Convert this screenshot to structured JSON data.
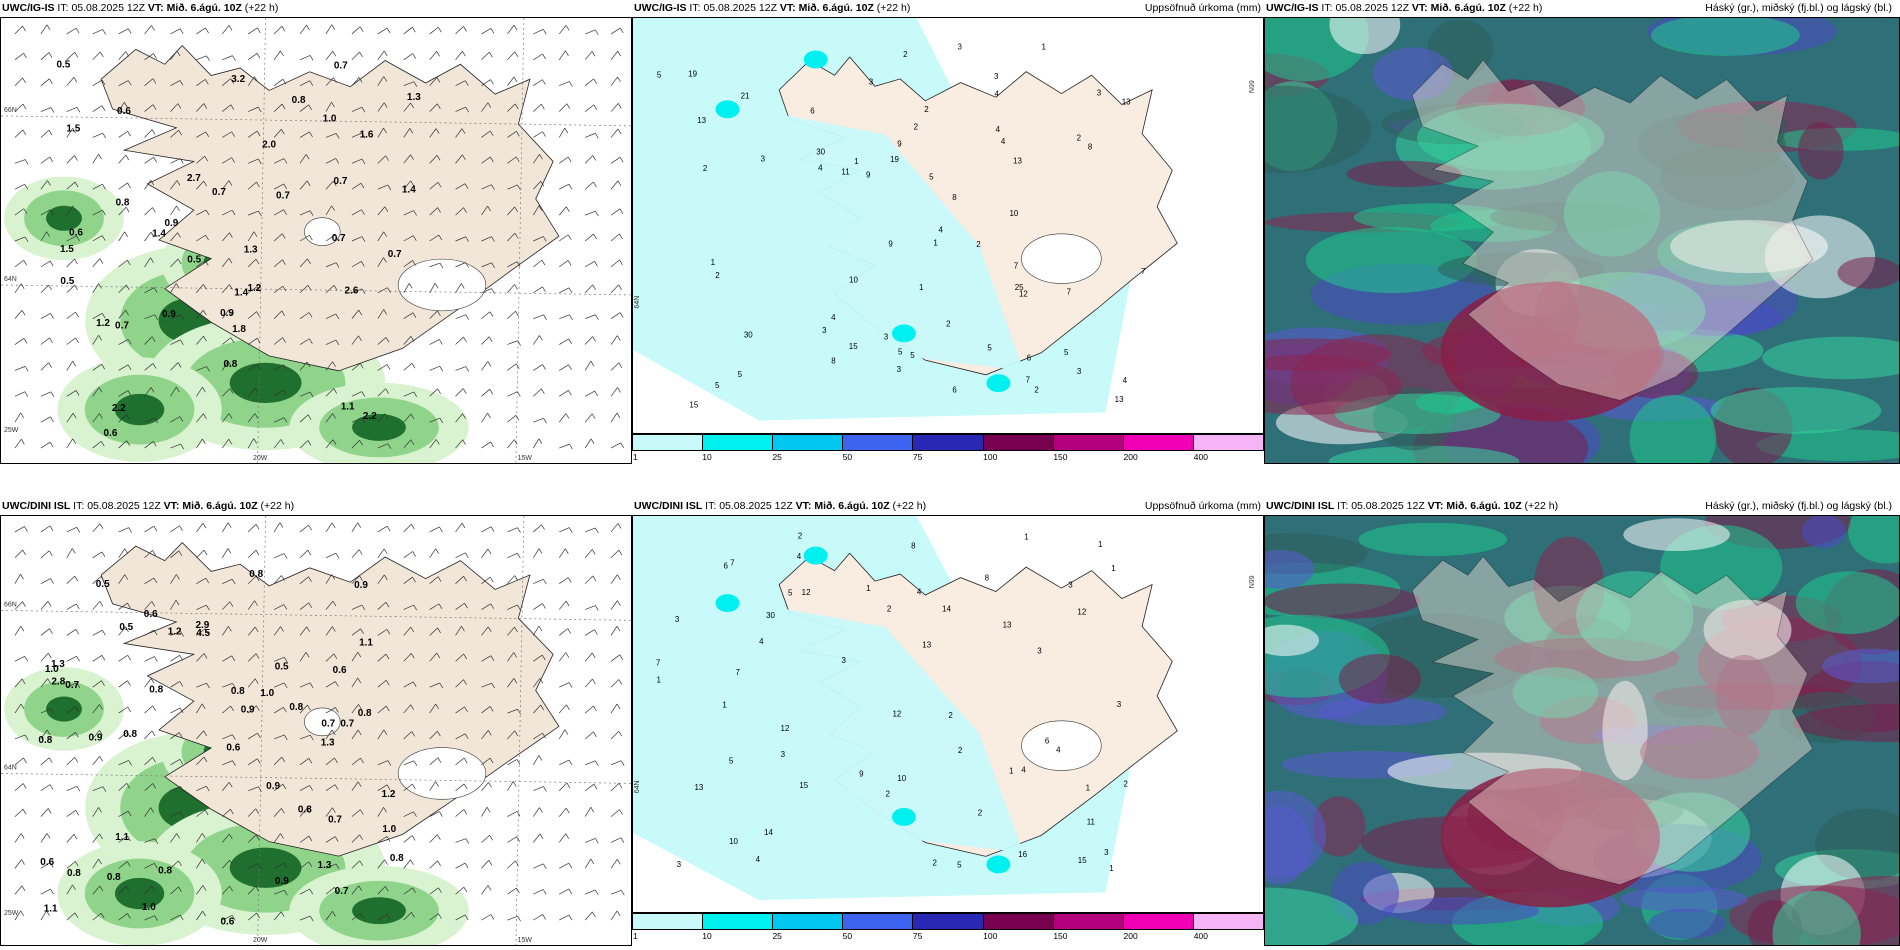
{
  "panels": [
    {
      "model": "UWC/IG-IS",
      "init_label": "IT:",
      "init_time": "05.08.2025 12Z",
      "valid_label": "VT:",
      "valid_time": "Mið. 6.ágú. 10Z",
      "lead": "(+22 h)",
      "title_right": "",
      "type": "wind-precip"
    },
    {
      "model": "UWC/IG-IS",
      "init_label": "IT:",
      "init_time": "05.08.2025 12Z",
      "valid_label": "VT:",
      "valid_time": "Mið. 6.ágú. 10Z",
      "lead": "(+22 h)",
      "title_right": "Uppsöfnuð úrkoma (mm)",
      "type": "accum-precip"
    },
    {
      "model": "UWC/IG-IS",
      "init_label": "IT:",
      "init_time": "05.08.2025 12Z",
      "valid_label": "VT:",
      "valid_time": "Mið. 6.ágú. 10Z",
      "lead": "(+22 h)",
      "title_right": "Háský (gr.), miðský (fj.bl.) og lágský (bl.)",
      "type": "clouds"
    },
    {
      "model": "UWC/DINI ISL",
      "init_label": "IT:",
      "init_time": "05.08.2025 12Z",
      "valid_label": "VT:",
      "valid_time": "Mið. 6.ágú. 10Z",
      "lead": "(+22 h)",
      "title_right": "",
      "type": "wind-precip"
    },
    {
      "model": "UWC/DINI ISL",
      "init_label": "IT:",
      "init_time": "05.08.2025 12Z",
      "valid_label": "VT:",
      "valid_time": "Mið. 6.ágú. 10Z",
      "lead": "(+22 h)",
      "title_right": "Uppsöfnuð úrkoma (mm)",
      "type": "accum-precip"
    },
    {
      "model": "UWC/DINI ISL",
      "init_label": "IT:",
      "init_time": "05.08.2025 12Z",
      "valid_label": "VT:",
      "valid_time": "Mið. 6.ágú. 10Z",
      "lead": "(+22 h)",
      "title_right": "Háský (gr.), miðský (fj.bl.) og lágský (bl.)",
      "type": "clouds"
    }
  ],
  "legend": {
    "ticks": [
      "1",
      "10",
      "25",
      "50",
      "75",
      "100",
      "150",
      "200",
      "400"
    ],
    "colors": [
      "#c8fafa",
      "#00f0f0",
      "#00c8f0",
      "#3c64f0",
      "#2828b4",
      "#780050",
      "#b4007c",
      "#f000b4",
      "#f5b4f5"
    ]
  },
  "map_labels": {
    "lat_66": "66N",
    "lat_64": "64N",
    "lon_25": "25W",
    "lon_20": "20W",
    "lon_15": "15W"
  },
  "wind_panel_values_top": [
    "1.2",
    "1.6",
    "0.7",
    "1.8",
    "0.5",
    "0.7",
    "1.0",
    "0.7",
    "2.2",
    "0.8",
    "0.7",
    "0.5",
    "0.7",
    "1.4",
    "0.8",
    "0.6",
    "1.1",
    "0.5",
    "0.6",
    "0.7",
    "1.2",
    "2.6",
    "0.7",
    "0.9",
    "0.9",
    "2.0",
    "3.2",
    "1.5",
    "2.7",
    "1.3",
    "0.9",
    "1.4",
    "0.6",
    "0.8",
    "1.4",
    "1.3",
    "2.2",
    "1.5"
  ],
  "wind_panel_values_bottom": [
    "0.7",
    "0.6",
    "0.8",
    "0.7",
    "1.0",
    "0.5",
    "0.6",
    "0.8",
    "1.2",
    "0.8",
    "0.7",
    "0.8",
    "1.0",
    "0.5",
    "0.6",
    "0.9",
    "0.8",
    "1.3",
    "0.7",
    "1.0",
    "0.6",
    "1.2",
    "0.7",
    "1.1",
    "0.8",
    "0.6",
    "0.8",
    "0.9",
    "0.5",
    "0.8",
    "1.1",
    "0.8",
    "0.9",
    "0.8",
    "4.5",
    "2.8",
    "2.9",
    "1.1",
    "0.8",
    "0.9",
    "0.9",
    "1.3",
    "0.8",
    "1.3",
    "1.0"
  ],
  "accum_values_top": [
    "5",
    "7",
    "4",
    "1",
    "3",
    "3",
    "5",
    "3",
    "6",
    "3",
    "13",
    "4",
    "15",
    "2",
    "5",
    "30",
    "25",
    "2",
    "9",
    "13",
    "5",
    "5",
    "3",
    "2",
    "12",
    "4",
    "1",
    "2",
    "8",
    "2",
    "3",
    "10",
    "2",
    "15",
    "1",
    "6",
    "5",
    "13",
    "2",
    "3",
    "3",
    "4",
    "6",
    "8",
    "10",
    "11",
    "9",
    "5",
    "7",
    "4",
    "13",
    "19",
    "19",
    "7",
    "30",
    "21",
    "2",
    "9",
    "8",
    "7",
    "5",
    "4",
    "4",
    "3",
    "2",
    "1",
    "1"
  ],
  "accum_values_bottom": [
    "1",
    "3",
    "4",
    "4",
    "3",
    "15",
    "13",
    "12",
    "12",
    "7",
    "2",
    "1",
    "3",
    "4",
    "10",
    "5",
    "13",
    "1",
    "3",
    "2",
    "2",
    "1",
    "4",
    "1",
    "1",
    "8",
    "7",
    "1",
    "3",
    "2",
    "12",
    "6",
    "5",
    "3",
    "9",
    "10",
    "11",
    "6",
    "14",
    "13",
    "12",
    "14",
    "15",
    "30",
    "16",
    "8",
    "3",
    "2",
    "2",
    "1",
    "4",
    "2",
    "2",
    "1",
    "3",
    "4",
    "5",
    "7"
  ]
}
